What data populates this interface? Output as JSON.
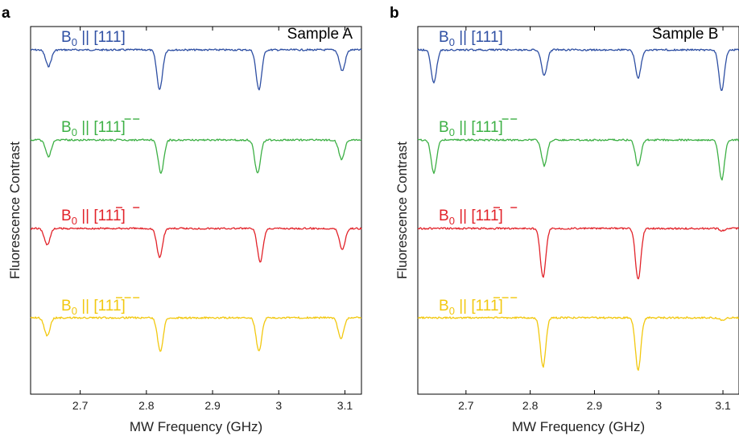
{
  "chart_data": [
    {
      "type": "line",
      "panel": "a",
      "title": "Sample A",
      "xlabel": "MW Frequency (GHz)",
      "ylabel": "Fluorescence Contrast",
      "xlim": [
        2.625,
        3.125
      ],
      "xticks": [
        "2.7",
        "2.8",
        "2.9",
        "3",
        "3.1"
      ],
      "xtick_values": [
        2.7,
        2.8,
        2.9,
        3.0,
        3.1
      ],
      "grid": false,
      "series": [
        {
          "name_prefix": "B",
          "name_sub": "0",
          "name_dir": "[111]",
          "bars": [
            false,
            false,
            false
          ],
          "color": "#2e4fa3",
          "dips": [
            {
              "x": 2.652,
              "depth": 0.35
            },
            {
              "x": 2.82,
              "depth": 0.85
            },
            {
              "x": 2.97,
              "depth": 0.85
            },
            {
              "x": 3.096,
              "depth": 0.45
            }
          ]
        },
        {
          "name_prefix": "B",
          "name_sub": "0",
          "name_dir": "[111]",
          "bars": [
            false,
            true,
            true
          ],
          "color": "#3db045",
          "dips": [
            {
              "x": 2.652,
              "depth": 0.35
            },
            {
              "x": 2.822,
              "depth": 0.72
            },
            {
              "x": 2.968,
              "depth": 0.72
            },
            {
              "x": 3.095,
              "depth": 0.42
            }
          ]
        },
        {
          "name_prefix": "B",
          "name_sub": "0",
          "name_dir": "[111]",
          "bars": [
            true,
            false,
            true
          ],
          "color": "#e2232a",
          "dips": [
            {
              "x": 2.65,
              "depth": 0.35
            },
            {
              "x": 2.82,
              "depth": 0.62
            },
            {
              "x": 2.972,
              "depth": 0.72
            },
            {
              "x": 3.096,
              "depth": 0.45
            }
          ]
        },
        {
          "name_prefix": "B",
          "name_sub": "0",
          "name_dir": "[111]",
          "bars": [
            true,
            true,
            true
          ],
          "color": "#f2c80f",
          "dips": [
            {
              "x": 2.65,
              "depth": 0.38
            },
            {
              "x": 2.821,
              "depth": 0.72
            },
            {
              "x": 2.97,
              "depth": 0.72
            },
            {
              "x": 3.094,
              "depth": 0.45
            }
          ]
        }
      ]
    },
    {
      "type": "line",
      "panel": "b",
      "title": "Sample B",
      "xlabel": "MW Frequency (GHz)",
      "ylabel": "Fluorescence Contrast",
      "xlim": [
        2.625,
        3.125
      ],
      "xticks": [
        "2.7",
        "2.8",
        "2.9",
        "3",
        "3.1"
      ],
      "xtick_values": [
        2.7,
        2.8,
        2.9,
        3.0,
        3.1
      ],
      "grid": false,
      "series": [
        {
          "name_prefix": "B",
          "name_sub": "0",
          "name_dir": "[111]",
          "bars": [
            false,
            false,
            false
          ],
          "color": "#2e4fa3",
          "dips": [
            {
              "x": 2.65,
              "depth": 0.7
            },
            {
              "x": 2.822,
              "depth": 0.55
            },
            {
              "x": 2.968,
              "depth": 0.6
            },
            {
              "x": 3.098,
              "depth": 0.88
            }
          ]
        },
        {
          "name_prefix": "B",
          "name_sub": "0",
          "name_dir": "[111]",
          "bars": [
            false,
            true,
            true
          ],
          "color": "#3db045",
          "dips": [
            {
              "x": 2.65,
              "depth": 0.7
            },
            {
              "x": 2.822,
              "depth": 0.55
            },
            {
              "x": 2.968,
              "depth": 0.55
            },
            {
              "x": 3.098,
              "depth": 0.85
            }
          ]
        },
        {
          "name_prefix": "B",
          "name_sub": "0",
          "name_dir": "[111]",
          "bars": [
            true,
            false,
            true
          ],
          "color": "#e2232a",
          "dips": [
            {
              "x": 2.82,
              "depth": 1.05
            },
            {
              "x": 2.968,
              "depth": 1.1
            },
            {
              "x": 3.1,
              "depth": 0.05
            }
          ]
        },
        {
          "name_prefix": "B",
          "name_sub": "0",
          "name_dir": "[111]",
          "bars": [
            true,
            true,
            true
          ],
          "color": "#f2c80f",
          "dips": [
            {
              "x": 2.82,
              "depth": 1.05
            },
            {
              "x": 2.968,
              "depth": 1.12
            },
            {
              "x": 3.1,
              "depth": 0.06
            }
          ]
        }
      ]
    }
  ]
}
